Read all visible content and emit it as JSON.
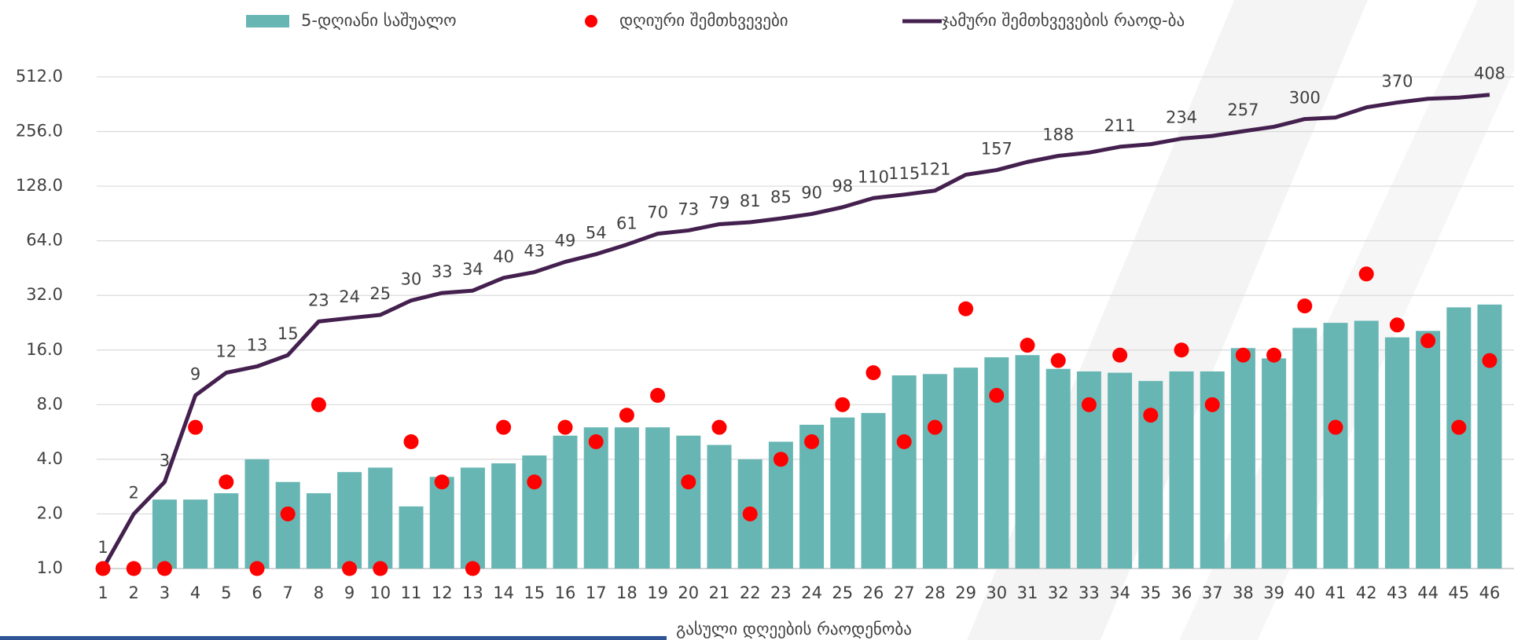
{
  "chart_data": {
    "type": "combo",
    "x_label": "გასული დღეების რაოდენობა",
    "categories": [
      1,
      2,
      3,
      4,
      5,
      6,
      7,
      8,
      9,
      10,
      11,
      12,
      13,
      14,
      15,
      16,
      17,
      18,
      19,
      20,
      21,
      22,
      23,
      24,
      25,
      26,
      27,
      28,
      29,
      30,
      31,
      32,
      33,
      34,
      35,
      36,
      37,
      38,
      39,
      40,
      41,
      42,
      43,
      44,
      45,
      46
    ],
    "ylim": [
      1,
      650
    ],
    "log_scale": true,
    "grid": true,
    "legend": "top",
    "yticks": [
      {
        "value": 1,
        "label": "1.0"
      },
      {
        "value": 2,
        "label": "2.0"
      },
      {
        "value": 4,
        "label": "4.0"
      },
      {
        "value": 8,
        "label": "8.0"
      },
      {
        "value": 16,
        "label": "16.0"
      },
      {
        "value": 32,
        "label": "32.0"
      },
      {
        "value": 64,
        "label": "64.0"
      },
      {
        "value": 128,
        "label": "128.0"
      },
      {
        "value": 256,
        "label": "256.0"
      },
      {
        "value": 512,
        "label": "512.0"
      }
    ],
    "series": [
      {
        "name": "5-დღიანი საშუალო",
        "type": "bar",
        "color": "#68b6b4",
        "values": [
          null,
          null,
          2.4,
          2.4,
          2.6,
          4,
          3,
          2.6,
          3.4,
          3.6,
          2.2,
          3.2,
          3.6,
          3.8,
          4.2,
          5.4,
          6,
          6,
          6,
          5.4,
          4.8,
          4,
          5,
          6.2,
          6.8,
          7.2,
          11.6,
          11.8,
          12.8,
          14.6,
          15,
          12.6,
          12.2,
          12,
          10.8,
          12.2,
          12.2,
          16.4,
          14.4,
          21.2,
          22.6,
          23.2,
          18.8,
          20.4,
          27.5,
          28.5
        ]
      },
      {
        "name": "დღიური შემთხვევები",
        "type": "scatter",
        "color": "#ff0000",
        "values": [
          1,
          1,
          1,
          6,
          3,
          1,
          2,
          8,
          1,
          1,
          5,
          3,
          1,
          6,
          3,
          6,
          5,
          7,
          9,
          3,
          6,
          2,
          4,
          5,
          8,
          12,
          5,
          6,
          27,
          9,
          17,
          14,
          8,
          15,
          7,
          16,
          8,
          15,
          15,
          28,
          6,
          42,
          22,
          18,
          6,
          14
        ]
      },
      {
        "name": "ჯამური შემთხვევების რაოდ-ბა",
        "type": "line",
        "color": "#44204f",
        "values": [
          1,
          2,
          3,
          9,
          12,
          13,
          15,
          23,
          24,
          25,
          30,
          33,
          34,
          40,
          43,
          49,
          54,
          61,
          70,
          73,
          79,
          81,
          85,
          90,
          98,
          110,
          115,
          121,
          148,
          157,
          174,
          188,
          196,
          211,
          218,
          234,
          242,
          257,
          272,
          300,
          306,
          348,
          370,
          388,
          394,
          408
        ],
        "value_labels": [
          "1",
          "2",
          "3",
          "9",
          "12",
          "13",
          "15",
          "23",
          "24",
          "25",
          "30",
          "33",
          "34",
          "40",
          "43",
          "49",
          "54",
          "61",
          "70",
          "73",
          "79",
          "81",
          "85",
          "90",
          "98",
          "110",
          "115",
          "121",
          null,
          "157",
          null,
          "188",
          null,
          "211",
          null,
          "234",
          null,
          "257",
          null,
          "300",
          null,
          null,
          "370",
          null,
          null,
          "408"
        ]
      }
    ]
  }
}
